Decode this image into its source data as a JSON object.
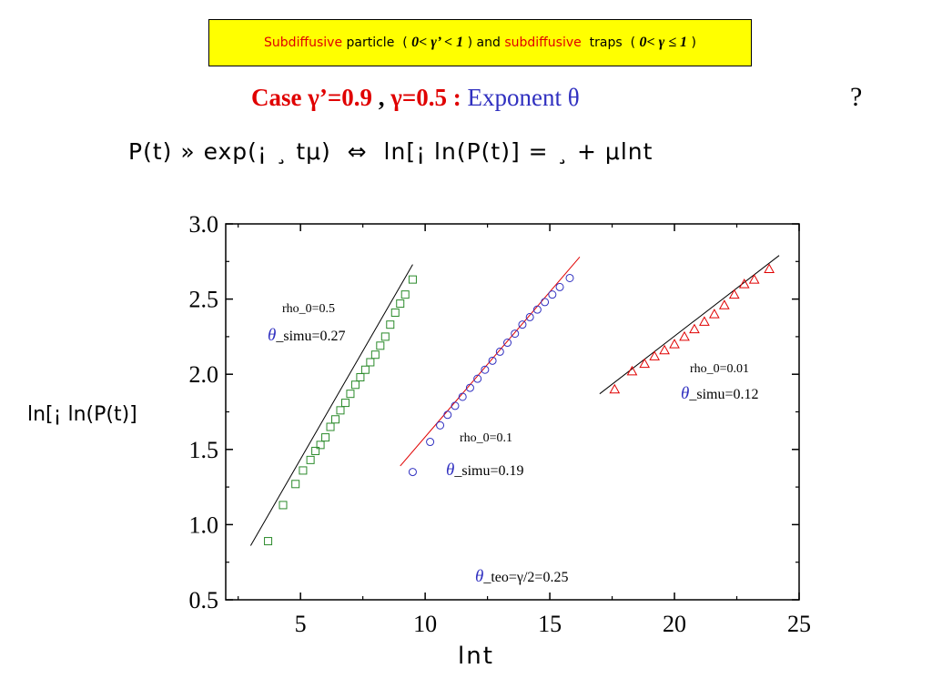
{
  "banner": {
    "part1": "Subdiffusive",
    "part2": " particle  ( ",
    "part3": "0< γ’ < 1",
    "part4": " ) and ",
    "part5": "subdiffusive",
    "part6": "  traps  ( ",
    "part7": "0< γ ≤ 1",
    "part8": " )"
  },
  "case_line": {
    "label": "Case  γ’=0.9",
    "sep": " , ",
    "gamma": "γ=0.5 :",
    "exponent": " Exponent θ"
  },
  "question_mark": "?",
  "formula": "P(t) » exp(¡ ¸ tμ)  ⇔  ln[¡ ln(P(t)] = ¸ + μlnt",
  "chart_data": {
    "type": "scatter",
    "xlabel": "lnt",
    "ylabel": "ln[¡  ln(P(t)]",
    "xlim": [
      2,
      25
    ],
    "ylim": [
      0.5,
      3.0
    ],
    "xticks": [
      "5",
      "10",
      "15",
      "20",
      "25"
    ],
    "yticks": [
      "0.5",
      "1.0",
      "1.5",
      "2.0",
      "2.5",
      "3.0"
    ],
    "grid": false,
    "series": [
      {
        "name": "rho_0=0.5",
        "marker": "square",
        "color": "#2a8a2a",
        "fit_color": "#000000",
        "fit": {
          "x": [
            3.0,
            9.5
          ],
          "y": [
            0.86,
            2.73
          ]
        },
        "points": [
          [
            3.7,
            0.89
          ],
          [
            4.3,
            1.13
          ],
          [
            4.8,
            1.27
          ],
          [
            5.1,
            1.36
          ],
          [
            5.4,
            1.43
          ],
          [
            5.6,
            1.49
          ],
          [
            5.8,
            1.53
          ],
          [
            6.0,
            1.58
          ],
          [
            6.2,
            1.65
          ],
          [
            6.4,
            1.7
          ],
          [
            6.6,
            1.76
          ],
          [
            6.8,
            1.81
          ],
          [
            7.0,
            1.87
          ],
          [
            7.2,
            1.93
          ],
          [
            7.4,
            1.98
          ],
          [
            7.6,
            2.03
          ],
          [
            7.8,
            2.08
          ],
          [
            8.0,
            2.13
          ],
          [
            8.2,
            2.19
          ],
          [
            8.4,
            2.25
          ],
          [
            8.6,
            2.33
          ],
          [
            8.8,
            2.41
          ],
          [
            9.0,
            2.47
          ],
          [
            9.2,
            2.53
          ],
          [
            9.5,
            2.63
          ]
        ]
      },
      {
        "name": "rho_0=0.1",
        "marker": "circle",
        "color": "#3030c0",
        "fit_color": "#e00000",
        "fit": {
          "x": [
            9.0,
            16.2
          ],
          "y": [
            1.39,
            2.78
          ]
        },
        "points": [
          [
            9.5,
            1.35
          ],
          [
            10.2,
            1.55
          ],
          [
            10.6,
            1.66
          ],
          [
            10.9,
            1.73
          ],
          [
            11.2,
            1.79
          ],
          [
            11.5,
            1.85
          ],
          [
            11.8,
            1.91
          ],
          [
            12.1,
            1.97
          ],
          [
            12.4,
            2.03
          ],
          [
            12.7,
            2.09
          ],
          [
            13.0,
            2.15
          ],
          [
            13.3,
            2.21
          ],
          [
            13.6,
            2.27
          ],
          [
            13.9,
            2.33
          ],
          [
            14.2,
            2.38
          ],
          [
            14.5,
            2.43
          ],
          [
            14.8,
            2.48
          ],
          [
            15.1,
            2.53
          ],
          [
            15.4,
            2.58
          ],
          [
            15.8,
            2.64
          ]
        ]
      },
      {
        "name": "rho_0=0.01",
        "marker": "triangle",
        "color": "#e00000",
        "fit_color": "#000000",
        "fit": {
          "x": [
            17.0,
            24.2
          ],
          "y": [
            1.87,
            2.79
          ]
        },
        "points": [
          [
            17.6,
            1.9
          ],
          [
            18.3,
            2.02
          ],
          [
            18.8,
            2.07
          ],
          [
            19.2,
            2.12
          ],
          [
            19.6,
            2.16
          ],
          [
            20.0,
            2.2
          ],
          [
            20.4,
            2.25
          ],
          [
            20.8,
            2.3
          ],
          [
            21.2,
            2.35
          ],
          [
            21.6,
            2.4
          ],
          [
            22.0,
            2.46
          ],
          [
            22.4,
            2.53
          ],
          [
            22.8,
            2.6
          ],
          [
            23.2,
            2.63
          ],
          [
            23.8,
            2.7
          ]
        ]
      }
    ],
    "annotations": [
      {
        "rho": "rho_0=0.5",
        "theta": "_simu=0.27"
      },
      {
        "rho": "rho_0=0.1",
        "theta": "_simu=0.19"
      },
      {
        "rho": "rho_0=0.01",
        "theta": "_simu=0.12"
      },
      {
        "theta": "_teo=γ/2=0.25"
      }
    ],
    "theta_symbol": "θ"
  }
}
